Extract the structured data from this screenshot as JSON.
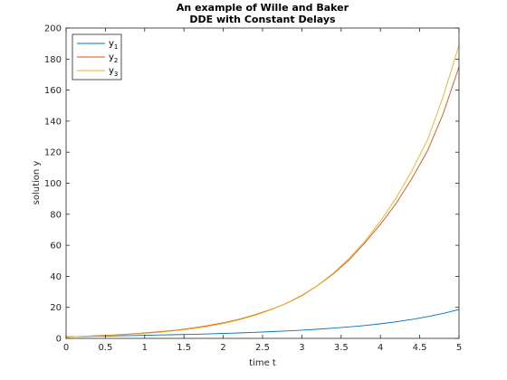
{
  "chart_data": {
    "type": "line",
    "title": [
      "An example of Wille and Baker",
      "DDE with Constant Delays"
    ],
    "xlabel": "time t",
    "ylabel": "solution y",
    "xlim": [
      0,
      5
    ],
    "ylim": [
      0,
      200
    ],
    "xticks": [
      "0",
      "0.5",
      "1",
      "1.5",
      "2",
      "2.5",
      "3",
      "3.5",
      "4",
      "4.5",
      "5"
    ],
    "yticks": [
      "0",
      "20",
      "40",
      "60",
      "80",
      "100",
      "120",
      "140",
      "160",
      "180",
      "200"
    ],
    "grid": false,
    "legend_position": "top-left",
    "series": [
      {
        "name": "y",
        "subscript": "1",
        "color": "#0072BD",
        "x": [
          0,
          0.2,
          0.4,
          0.6,
          0.8,
          1.0,
          1.2,
          1.4,
          1.6,
          1.8,
          2.0,
          2.2,
          2.4,
          2.6,
          2.8,
          3.0,
          3.2,
          3.4,
          3.6,
          3.8,
          4.0,
          4.2,
          4.4,
          4.6,
          4.8,
          5.0
        ],
        "y": [
          1.0,
          1.2,
          1.4,
          1.6,
          1.8,
          2.0,
          2.2,
          2.4,
          2.6,
          2.9,
          3.2,
          3.5,
          3.9,
          4.3,
          4.8,
          5.3,
          5.9,
          6.6,
          7.4,
          8.3,
          9.4,
          10.7,
          12.2,
          14.0,
          16.1,
          18.6
        ]
      },
      {
        "name": "y",
        "subscript": "2",
        "color": "#D95319",
        "x": [
          0,
          0.2,
          0.4,
          0.6,
          0.8,
          1.0,
          1.2,
          1.4,
          1.6,
          1.8,
          2.0,
          2.2,
          2.4,
          2.6,
          2.8,
          3.0,
          3.2,
          3.4,
          3.6,
          3.8,
          4.0,
          4.2,
          4.4,
          4.6,
          4.8,
          5.0
        ],
        "y": [
          1.0,
          1.3,
          1.8,
          2.2,
          2.8,
          3.5,
          4.3,
          5.3,
          6.6,
          8.2,
          10.0,
          12.3,
          15.2,
          18.5,
          22.5,
          27.5,
          34.0,
          41.5,
          50.5,
          61.5,
          73.5,
          87.0,
          103.0,
          121.0,
          145.0,
          175.0
        ]
      },
      {
        "name": "y",
        "subscript": "3",
        "color": "#EDB120",
        "x": [
          0,
          0.2,
          0.4,
          0.6,
          0.8,
          1.0,
          1.2,
          1.4,
          1.6,
          1.8,
          2.0,
          2.2,
          2.4,
          2.6,
          2.8,
          3.0,
          3.2,
          3.4,
          3.6,
          3.8,
          4.0,
          4.2,
          4.4,
          4.6,
          4.8,
          5.0
        ],
        "y": [
          1.0,
          1.3,
          1.7,
          2.1,
          2.6,
          3.2,
          4.0,
          5.0,
          6.2,
          7.7,
          9.6,
          11.9,
          14.8,
          18.3,
          22.6,
          27.8,
          34.2,
          42.0,
          51.5,
          62.5,
          75.5,
          90.5,
          108.0,
          128.0,
          156.0,
          189.0
        ]
      }
    ]
  }
}
